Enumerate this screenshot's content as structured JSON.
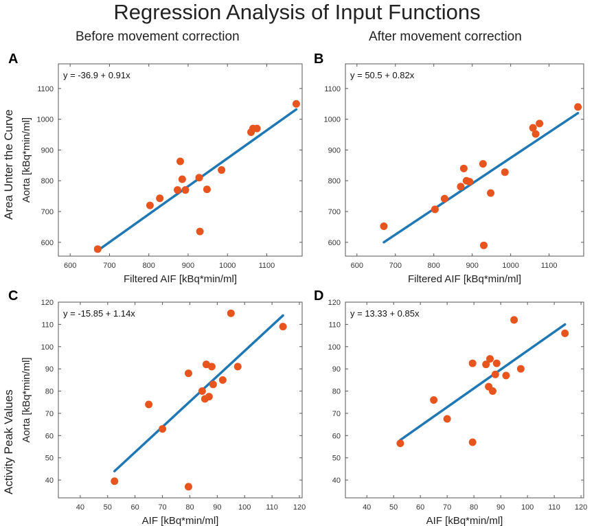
{
  "title": "Regression Analysis of Input Functions",
  "column_titles": [
    "Before movement correction",
    "After movement correction"
  ],
  "row_titles": [
    "Area Unter the Curve",
    "Activity Peak Values"
  ],
  "colors": {
    "points": "#e8541e",
    "line": "#1f77b4",
    "axis": "#555555"
  },
  "chart_data": [
    {
      "panel": "A",
      "type": "scatter",
      "xlabel": "Filtered AIF [kBq*min/ml]",
      "ylabel": "Aorta  [kBq*min/ml]",
      "xlim": [
        570,
        1190
      ],
      "ylim": [
        555,
        1180
      ],
      "xticks": [
        600,
        700,
        800,
        900,
        1000,
        1100
      ],
      "yticks": [
        600,
        700,
        800,
        900,
        1000,
        1100
      ],
      "equation": "y = -36.9 + 0.91x",
      "fit": {
        "x": [
          670,
          1175
        ],
        "y": [
          573,
          1032
        ]
      },
      "points": [
        [
          670,
          578
        ],
        [
          803,
          720
        ],
        [
          828,
          743
        ],
        [
          873,
          770
        ],
        [
          880,
          863
        ],
        [
          885,
          805
        ],
        [
          893,
          770
        ],
        [
          928,
          810
        ],
        [
          930,
          635
        ],
        [
          948,
          772
        ],
        [
          985,
          835
        ],
        [
          1060,
          958
        ],
        [
          1065,
          970
        ],
        [
          1075,
          970
        ],
        [
          1175,
          1050
        ]
      ]
    },
    {
      "panel": "B",
      "type": "scatter",
      "xlabel": "Filtered AIF [kBq*min/ml]",
      "ylabel": "",
      "xlim": [
        570,
        1190
      ],
      "ylim": [
        555,
        1180
      ],
      "xticks": [
        600,
        700,
        800,
        900,
        1000,
        1100
      ],
      "yticks": [
        600,
        700,
        800,
        900,
        1000,
        1100
      ],
      "equation": "y = 50.5 + 0.82x",
      "fit": {
        "x": [
          670,
          1175
        ],
        "y": [
          600,
          1020
        ]
      },
      "points": [
        [
          670,
          652
        ],
        [
          803,
          707
        ],
        [
          828,
          742
        ],
        [
          870,
          781
        ],
        [
          878,
          840
        ],
        [
          885,
          800
        ],
        [
          893,
          797
        ],
        [
          928,
          855
        ],
        [
          930,
          590
        ],
        [
          948,
          760
        ],
        [
          985,
          828
        ],
        [
          1058,
          972
        ],
        [
          1065,
          952
        ],
        [
          1075,
          986
        ],
        [
          1175,
          1040
        ]
      ]
    },
    {
      "panel": "C",
      "type": "scatter",
      "xlabel": "AIF [kBq*min/ml]",
      "ylabel": "Aorta  [kBq*min/ml]",
      "xlim": [
        32,
        121
      ],
      "ylim": [
        32,
        120
      ],
      "xticks": [
        40,
        50,
        60,
        70,
        80,
        90,
        100,
        110,
        120
      ],
      "yticks": [
        40,
        50,
        60,
        70,
        80,
        90,
        100,
        110,
        120
      ],
      "equation": "y = -15.85 + 1.14x",
      "fit": {
        "x": [
          52.5,
          114
        ],
        "y": [
          44,
          114
        ]
      },
      "points": [
        [
          52.5,
          39.5
        ],
        [
          65,
          74
        ],
        [
          70,
          63
        ],
        [
          79.5,
          88
        ],
        [
          79.5,
          37
        ],
        [
          84.5,
          80
        ],
        [
          85.5,
          76.5
        ],
        [
          86,
          92
        ],
        [
          87,
          77.5
        ],
        [
          88,
          91
        ],
        [
          88.5,
          83
        ],
        [
          92,
          85
        ],
        [
          95,
          115
        ],
        [
          97.5,
          91
        ],
        [
          114,
          109
        ]
      ]
    },
    {
      "panel": "D",
      "type": "scatter",
      "xlabel": "AIF [kBq*min/ml]",
      "ylabel": "",
      "xlim": [
        32,
        121
      ],
      "ylim": [
        32,
        120
      ],
      "xticks": [
        40,
        50,
        60,
        70,
        80,
        90,
        100,
        110,
        120
      ],
      "yticks": [
        40,
        50,
        60,
        70,
        80,
        90,
        100,
        110,
        120
      ],
      "equation": "y = 13.33 + 0.85x",
      "fit": {
        "x": [
          52.5,
          114
        ],
        "y": [
          58,
          110
        ]
      },
      "points": [
        [
          52.5,
          56.5
        ],
        [
          65,
          76
        ],
        [
          70,
          67.5
        ],
        [
          79.5,
          92.5
        ],
        [
          79.5,
          57
        ],
        [
          84.5,
          92
        ],
        [
          85.5,
          82
        ],
        [
          86,
          94.5
        ],
        [
          87,
          80
        ],
        [
          88,
          87.5
        ],
        [
          88.5,
          92.5
        ],
        [
          92,
          87
        ],
        [
          95,
          112
        ],
        [
          97.5,
          90
        ],
        [
          114,
          106
        ]
      ]
    }
  ]
}
